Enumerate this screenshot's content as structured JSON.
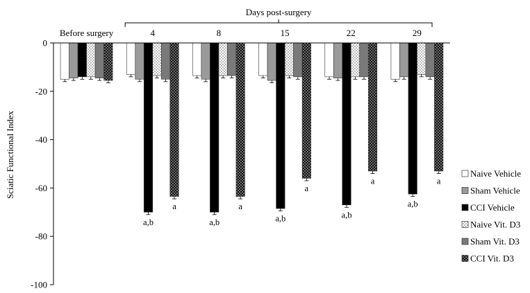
{
  "chart_data": {
    "type": "bar",
    "ylabel": "Sciatic Functional Index",
    "ylim": [
      -100,
      0
    ],
    "yticks": [
      0,
      -20,
      -40,
      -60,
      -80,
      -100
    ],
    "bracket_label": "Days post-surgery",
    "legend_position": "right",
    "categories": [
      "Before surgery",
      "4",
      "8",
      "15",
      "22",
      "29"
    ],
    "series": [
      {
        "name": "Naive Vehicle",
        "pattern": "white",
        "values": [
          -15,
          -13,
          -13.5,
          -13.5,
          -14,
          -15
        ],
        "errors": [
          1,
          1,
          1,
          1,
          1,
          1
        ],
        "labels": [
          "",
          "",
          "",
          "",
          "",
          ""
        ]
      },
      {
        "name": "Sham Vehicle",
        "pattern": "gray",
        "values": [
          -14.5,
          -15,
          -15,
          -15.5,
          -14.5,
          -14
        ],
        "errors": [
          1,
          1,
          1,
          1,
          1,
          1
        ],
        "labels": [
          "",
          "",
          "",
          "",
          "",
          ""
        ]
      },
      {
        "name": "CCI Vehicle",
        "pattern": "black",
        "values": [
          -14,
          -70,
          -70,
          -68.5,
          -67,
          -62.5
        ],
        "errors": [
          1,
          1,
          1,
          1,
          1,
          1
        ],
        "labels": [
          "",
          "a,b",
          "a,b",
          "a,b",
          "a,b",
          "a,b"
        ]
      },
      {
        "name": "Naive Vit. D3",
        "pattern": "dotted",
        "values": [
          -14,
          -13.5,
          -13.5,
          -13.5,
          -14,
          -13
        ],
        "errors": [
          1,
          1,
          1,
          1,
          1,
          1
        ],
        "labels": [
          "",
          "",
          "",
          "",
          "",
          ""
        ]
      },
      {
        "name": "Sham Vit. D3",
        "pattern": "darkgray",
        "values": [
          -14.5,
          -15,
          -13.5,
          -14,
          -14,
          -14
        ],
        "errors": [
          1,
          1,
          1,
          1,
          1,
          1
        ],
        "labels": [
          "",
          "",
          "",
          "",
          "",
          ""
        ]
      },
      {
        "name": "CCI Vit. D3",
        "pattern": "blackdots",
        "values": [
          -15.5,
          -63.5,
          -63.5,
          -56,
          -53,
          -53
        ],
        "errors": [
          1,
          1,
          1,
          1,
          1,
          1
        ],
        "labels": [
          "",
          "a",
          "a",
          "a",
          "a",
          "a"
        ]
      }
    ]
  }
}
